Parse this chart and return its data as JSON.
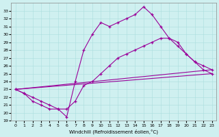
{
  "xlabel": "Windchill (Refroidissement éolien,°C)",
  "bg_color": "#cff0f0",
  "line_color": "#990099",
  "xlim": [
    -0.5,
    23.5
  ],
  "ylim": [
    19,
    34
  ],
  "yticks": [
    19,
    20,
    21,
    22,
    23,
    24,
    25,
    26,
    27,
    28,
    29,
    30,
    31,
    32,
    33
  ],
  "xticks": [
    0,
    1,
    2,
    3,
    4,
    5,
    6,
    7,
    8,
    9,
    10,
    11,
    12,
    13,
    14,
    15,
    16,
    17,
    18,
    19,
    20,
    21,
    22,
    23
  ],
  "series": [
    {
      "x": [
        0,
        1,
        2,
        3,
        4,
        5,
        6,
        7,
        8,
        9,
        10,
        11,
        12,
        13,
        14,
        15,
        16,
        17,
        18,
        19,
        20,
        21,
        22,
        23
      ],
      "y": [
        23.0,
        22.5,
        22.0,
        21.5,
        21.0,
        20.5,
        19.5,
        24.0,
        28.0,
        30.0,
        31.5,
        31.0,
        31.5,
        32.0,
        32.5,
        33.5,
        32.5,
        31.0,
        29.5,
        28.5,
        27.5,
        26.5,
        26.0,
        25.5
      ],
      "marker": true
    },
    {
      "x": [
        0,
        1,
        2,
        3,
        4,
        5,
        6,
        7,
        8,
        9,
        10,
        11,
        12,
        13,
        14,
        15,
        16,
        17,
        18,
        19,
        20,
        21,
        22,
        23
      ],
      "y": [
        23.0,
        22.5,
        21.5,
        21.0,
        20.5,
        20.5,
        20.5,
        21.5,
        23.5,
        24.0,
        25.0,
        26.0,
        27.0,
        27.5,
        28.0,
        28.5,
        29.0,
        29.5,
        29.5,
        29.0,
        27.5,
        26.5,
        25.5,
        25.0
      ],
      "marker": true
    },
    {
      "x": [
        0,
        23
      ],
      "y": [
        23.0,
        25.0
      ],
      "marker": false
    },
    {
      "x": [
        0,
        23
      ],
      "y": [
        23.0,
        25.5
      ],
      "marker": false
    }
  ]
}
